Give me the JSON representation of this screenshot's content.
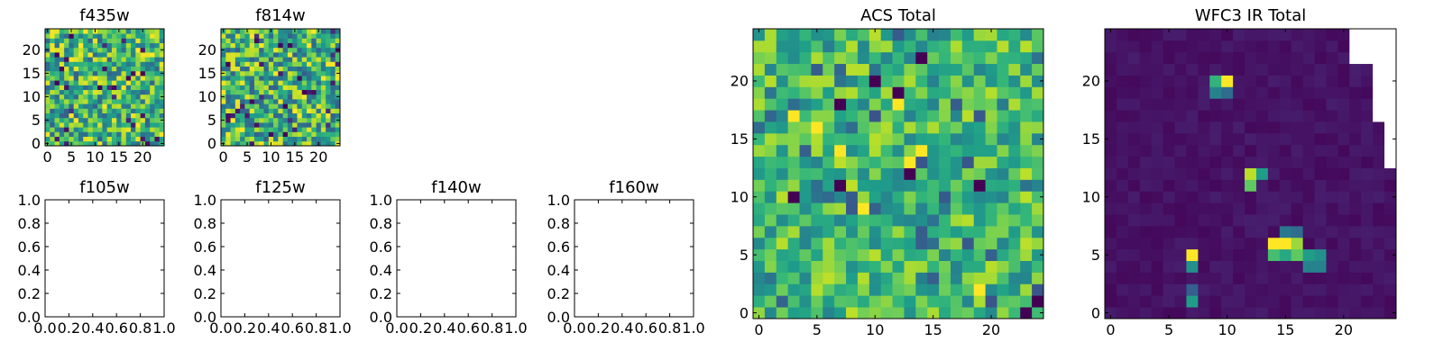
{
  "colors": {
    "viridis_dark": "#440154",
    "viridis_blue": "#3b528b",
    "viridis_teal": "#21918c",
    "viridis_green": "#5ec962",
    "viridis_yellow": "#fde725",
    "missing_pixel": "#ffffff"
  },
  "chart_data": [
    {
      "id": "f435w",
      "type": "heatmap",
      "title": "f435w",
      "colormap": "viridis",
      "xlim": [
        -0.5,
        24.5
      ],
      "ylim": [
        -0.5,
        24.5
      ],
      "xticks": [
        0,
        5,
        10,
        15,
        20
      ],
      "yticks": [
        0,
        5,
        10,
        15,
        20
      ],
      "grid_size": [
        25,
        25
      ],
      "pattern": "noise",
      "noise_level": "high",
      "values": []
    },
    {
      "id": "f814w",
      "type": "heatmap",
      "title": "f814w",
      "colormap": "viridis",
      "xlim": [
        -0.5,
        24.5
      ],
      "ylim": [
        -0.5,
        24.5
      ],
      "xticks": [
        0,
        5,
        10,
        15,
        20
      ],
      "yticks": [
        0,
        5,
        10,
        15,
        20
      ],
      "grid_size": [
        25,
        25
      ],
      "pattern": "noise",
      "noise_level": "high",
      "values": []
    },
    {
      "id": "f105w",
      "type": "heatmap",
      "title": "f105w",
      "empty": true,
      "xlim": [
        0,
        1
      ],
      "ylim": [
        0,
        1
      ],
      "xticks": [
        "0.0",
        "0.2",
        "0.4",
        "0.6",
        "0.8",
        "1.0"
      ],
      "yticks": [
        "0.0",
        "0.2",
        "0.4",
        "0.6",
        "0.8",
        "1.0"
      ]
    },
    {
      "id": "f125w",
      "type": "heatmap",
      "title": "f125w",
      "empty": true,
      "xlim": [
        0,
        1
      ],
      "ylim": [
        0,
        1
      ],
      "xticks": [
        "0.0",
        "0.2",
        "0.4",
        "0.6",
        "0.8",
        "1.0"
      ],
      "yticks": [
        "0.0",
        "0.2",
        "0.4",
        "0.6",
        "0.8",
        "1.0"
      ]
    },
    {
      "id": "f140w",
      "type": "heatmap",
      "title": "f140w",
      "empty": true,
      "xlim": [
        0,
        1
      ],
      "ylim": [
        0,
        1
      ],
      "xticks": [
        "0.0",
        "0.2",
        "0.4",
        "0.6",
        "0.8",
        "1.0"
      ],
      "yticks": [
        "0.0",
        "0.2",
        "0.4",
        "0.6",
        "0.8",
        "1.0"
      ]
    },
    {
      "id": "f160w",
      "type": "heatmap",
      "title": "f160w",
      "empty": true,
      "xlim": [
        0,
        1
      ],
      "ylim": [
        0,
        1
      ],
      "xticks": [
        "0.0",
        "0.2",
        "0.4",
        "0.6",
        "0.8",
        "1.0"
      ],
      "yticks": [
        "0.0",
        "0.2",
        "0.4",
        "0.6",
        "0.8",
        "1.0"
      ]
    },
    {
      "id": "acs_total",
      "type": "heatmap",
      "title": "ACS Total",
      "colormap": "viridis",
      "xlim": [
        -0.5,
        24.5
      ],
      "ylim": [
        -0.5,
        24.5
      ],
      "xticks": [
        0,
        5,
        10,
        15,
        20
      ],
      "yticks": [
        0,
        5,
        10,
        15,
        20
      ],
      "grid_size": [
        25,
        25
      ],
      "pattern": "noise",
      "noise_level": "medium",
      "dark_pixels": [
        [
          7,
          18
        ],
        [
          10,
          20
        ],
        [
          3,
          10
        ],
        [
          7,
          11
        ],
        [
          12,
          19
        ],
        [
          14,
          22
        ],
        [
          19,
          11
        ],
        [
          24,
          1
        ],
        [
          23,
          0
        ],
        [
          13,
          12
        ]
      ],
      "bright_pixels": [
        [
          5,
          16
        ],
        [
          9,
          9
        ],
        [
          13,
          13
        ],
        [
          14,
          14
        ],
        [
          12,
          18
        ],
        [
          3,
          17
        ],
        [
          19,
          2
        ],
        [
          7,
          14
        ]
      ],
      "values": []
    },
    {
      "id": "wfc3_ir_total",
      "type": "heatmap",
      "title": "WFC3 IR Total",
      "colormap": "viridis",
      "xlim": [
        -0.5,
        24.5
      ],
      "ylim": [
        -0.5,
        24.5
      ],
      "xticks": [
        0,
        5,
        10,
        15,
        20
      ],
      "yticks": [
        0,
        5,
        10,
        15,
        20
      ],
      "grid_size": [
        25,
        25
      ],
      "pattern": "sources",
      "background": "low",
      "sources": [
        {
          "x": 10,
          "y": 20,
          "level": 1.0
        },
        {
          "x": 9,
          "y": 20,
          "level": 0.65
        },
        {
          "x": 9,
          "y": 19,
          "level": 0.45
        },
        {
          "x": 10,
          "y": 19,
          "level": 0.35
        },
        {
          "x": 12,
          "y": 12,
          "level": 0.9
        },
        {
          "x": 13,
          "y": 12,
          "level": 0.55
        },
        {
          "x": 12,
          "y": 11,
          "level": 0.75
        },
        {
          "x": 7,
          "y": 5,
          "level": 1.0
        },
        {
          "x": 7,
          "y": 4,
          "level": 0.5
        },
        {
          "x": 7,
          "y": 1,
          "level": 0.55
        },
        {
          "x": 7,
          "y": 2,
          "level": 0.3
        },
        {
          "x": 14,
          "y": 6,
          "level": 1.0
        },
        {
          "x": 15,
          "y": 6,
          "level": 1.0
        },
        {
          "x": 16,
          "y": 6,
          "level": 0.85
        },
        {
          "x": 14,
          "y": 5,
          "level": 0.7
        },
        {
          "x": 15,
          "y": 5,
          "level": 0.6
        },
        {
          "x": 16,
          "y": 5,
          "level": 0.75
        },
        {
          "x": 17,
          "y": 5,
          "level": 0.55
        },
        {
          "x": 18,
          "y": 5,
          "level": 0.5
        },
        {
          "x": 17,
          "y": 4,
          "level": 0.45
        },
        {
          "x": 18,
          "y": 4,
          "level": 0.45
        },
        {
          "x": 15,
          "y": 7,
          "level": 0.4
        },
        {
          "x": 16,
          "y": 7,
          "level": 0.35
        }
      ],
      "missing_region": "top-right corner",
      "values": []
    }
  ]
}
